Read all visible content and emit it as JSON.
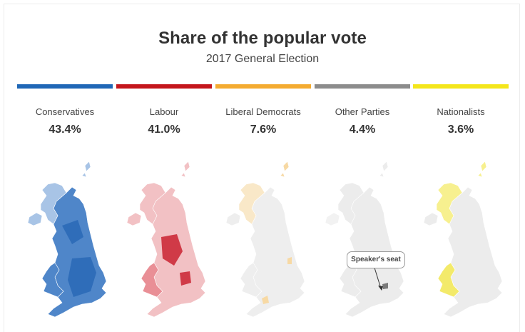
{
  "header": {
    "title": "Share of the popular vote",
    "subtitle": "2017 General Election"
  },
  "parties": [
    {
      "name": "Conservatives",
      "share": "43.4%",
      "color": "#1f67b6",
      "map_fill": "#4f86c9",
      "map_dark": "#2f6db9",
      "map_light": "#a8c4e6"
    },
    {
      "name": "Labour",
      "share": "41.0%",
      "color": "#c4161c",
      "map_fill": "#e98f96",
      "map_dark": "#d03a47",
      "map_light": "#f2c1c4"
    },
    {
      "name": "Liberal Democrats",
      "share": "7.6%",
      "color": "#f4ab30",
      "map_fill": "#eeeeee",
      "map_dark": "#f7d9a4",
      "map_light": "#f9e8c8"
    },
    {
      "name": "Other Parties",
      "share": "4.4%",
      "color": "#8c8c8c",
      "map_fill": "#ececec",
      "map_dark": "#7a7a7a",
      "map_light": "#f2f2f2"
    },
    {
      "name": "Nationalists",
      "share": "3.6%",
      "color": "#f4e61b",
      "map_fill": "#ececec",
      "map_dark": "#f3ea6a",
      "map_light": "#f7f08f"
    }
  ],
  "annotation": {
    "label": "Speaker's seat"
  }
}
